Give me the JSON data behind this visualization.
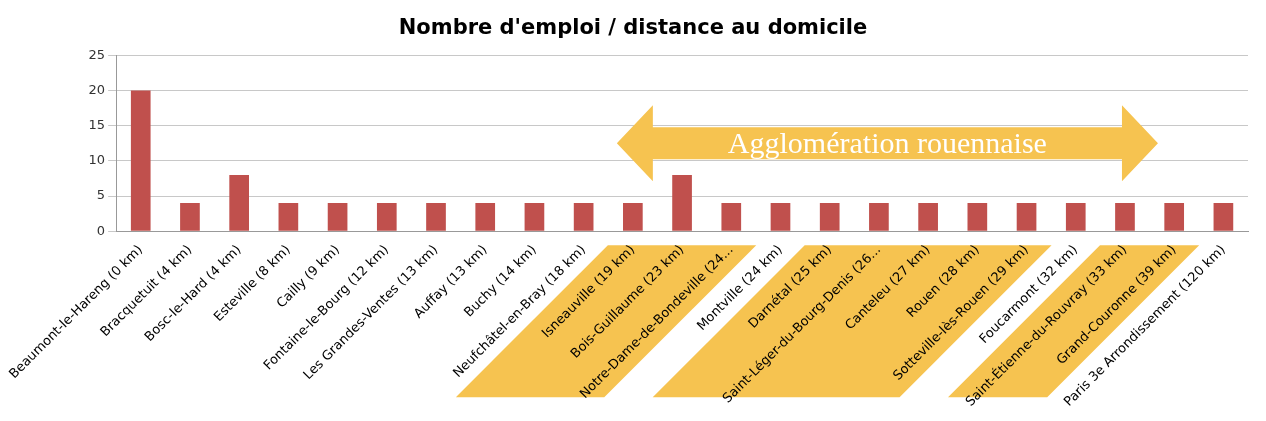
{
  "chart_data": {
    "type": "bar",
    "title": "Nombre d'emploi / distance au domicile",
    "categories": [
      "Beaumont-le-Hareng (0 km)",
      "Bracquetuit (4 km)",
      "Bosc-le-Hard (4 km)",
      "Esteville (8 km)",
      "Cailly (9 km)",
      "Fontaine-le-Bourg (12 km)",
      "Les Grandes-Ventes (13 km)",
      "Auffay (13 km)",
      "Buchy (14 km)",
      "Neufchâtel-en-Bray (18 km)",
      "Isneauville (19 km)",
      "Bois-Guillaume (23 km)",
      "Notre-Dame-de-Bondeville (24...",
      "Montville (24 km)",
      "Darnétal (25 km)",
      "Saint-Léger-du-Bourg-Denis (26...",
      "Canteleu (27 km)",
      "Rouen (28 km)",
      "Sotteville-lès-Rouen (29 km)",
      "Foucarmont (32 km)",
      "Saint-Étienne-du-Rouvray (33 km)",
      "Grand-Couronne (39 km)",
      "Paris 3e Arrondissement (120 km)"
    ],
    "values": [
      20,
      4,
      8,
      4,
      4,
      4,
      4,
      4,
      4,
      4,
      4,
      8,
      4,
      4,
      4,
      4,
      4,
      4,
      4,
      4,
      4,
      4,
      4
    ],
    "color": "#c0504d",
    "ylim": [
      0,
      25
    ],
    "yticks": [
      0,
      5,
      10,
      15,
      20,
      25
    ],
    "grid": "y",
    "annotations": [
      "Agglomération rouennaise"
    ]
  }
}
